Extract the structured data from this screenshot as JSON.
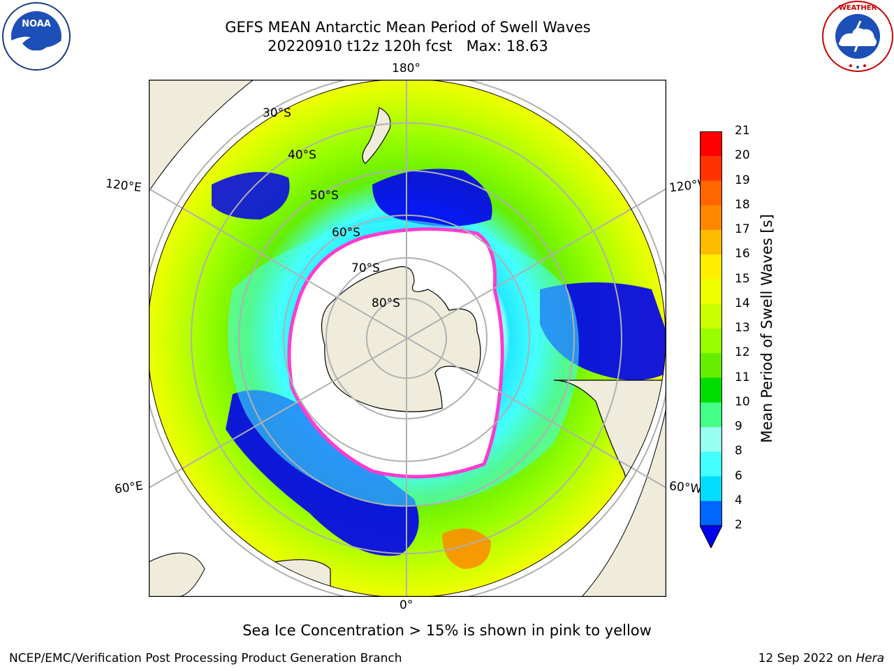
{
  "title": {
    "line1": "GEFS MEAN Antarctic Mean Period of Swell Waves",
    "line2": "20220910 t12z 120h fcst   Max: 18.63"
  },
  "map": {
    "projection": "south-polar-stereographic",
    "longitude_labels": {
      "top": "180°",
      "bottom": "0°",
      "upper_left": "120°E",
      "upper_right": "120°W",
      "lower_left": "60°E",
      "lower_right": "60°W"
    },
    "latitude_labels": [
      "30°S",
      "40°S",
      "50°S",
      "60°S",
      "70°S",
      "80°S"
    ],
    "colors": {
      "land": "#efecdc",
      "ice_edge": "#ff3bd0",
      "graticule": "#b0b0b0"
    }
  },
  "colorbar": {
    "label": "Mean Period of Swell Waves [s]",
    "ticks": [
      "21",
      "20",
      "19",
      "18",
      "17",
      "16",
      "15",
      "14",
      "13",
      "12",
      "11",
      "10",
      "9",
      "8",
      "6",
      "4",
      "2"
    ],
    "colors": [
      "#ff0000",
      "#ff3300",
      "#ff6600",
      "#ff8800",
      "#ffbb00",
      "#ffee00",
      "#f0ff00",
      "#ccff00",
      "#99ff00",
      "#66ee00",
      "#00dd00",
      "#44ff88",
      "#99ffee",
      "#44ffff",
      "#00ddff",
      "#0066ff",
      "#0000ee"
    ],
    "extend": "min"
  },
  "subtitle": "Sea Ice Concentration > 15% is shown in pink to yellow",
  "footer": {
    "left": "NCEP/EMC/Verification Post Processing Product Generation Branch",
    "date": "12 Sep 2022 on ",
    "host": "Hera"
  },
  "logos": {
    "left": "noaa-logo",
    "right": "nws-logo"
  }
}
